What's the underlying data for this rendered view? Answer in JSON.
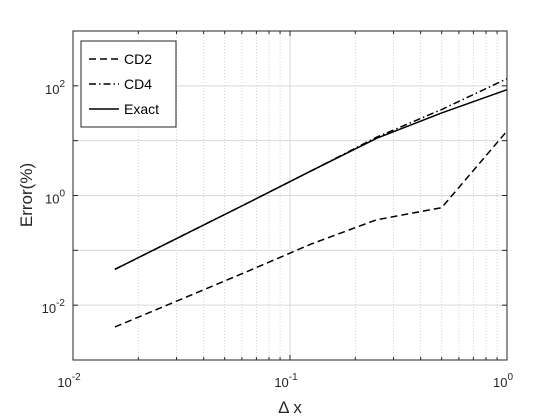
{
  "chart_data": {
    "type": "line",
    "xlabel": "Δ x",
    "ylabel": "Error(%)",
    "xscale": "log",
    "yscale": "log",
    "xlim": [
      0.01,
      1
    ],
    "ylim": [
      0.001,
      1000
    ],
    "grid": true,
    "legend_position": "top-left",
    "x_ticks": [
      {
        "value": 0.01,
        "base": "10",
        "exp": "-2"
      },
      {
        "value": 0.1,
        "base": "10",
        "exp": "-1"
      },
      {
        "value": 1,
        "base": "10",
        "exp": "0"
      }
    ],
    "y_ticks": [
      {
        "value": 0.01,
        "base": "10",
        "exp": "-2"
      },
      {
        "value": 1,
        "base": "10",
        "exp": "0"
      },
      {
        "value": 100,
        "base": "10",
        "exp": "2"
      }
    ],
    "series": [
      {
        "name": "CD2",
        "style": "dashed",
        "color": "#000000",
        "x": [
          0.0156,
          0.0625,
          0.125,
          0.25,
          0.5,
          1.0
        ],
        "y": [
          0.004,
          0.04,
          0.13,
          0.36,
          0.6,
          15
        ]
      },
      {
        "name": "CD4",
        "style": "dashdot",
        "color": "#000000",
        "x": [
          0.0156,
          0.0625,
          0.125,
          0.25,
          0.5,
          1.0
        ],
        "y": [
          0.045,
          0.7,
          2.8,
          11.5,
          37,
          135
        ]
      },
      {
        "name": "Exact",
        "style": "solid",
        "color": "#000000",
        "x": [
          0.0156,
          0.0625,
          0.125,
          0.25,
          0.5,
          1.0
        ],
        "y": [
          0.045,
          0.7,
          2.8,
          11,
          32,
          85
        ]
      }
    ]
  }
}
